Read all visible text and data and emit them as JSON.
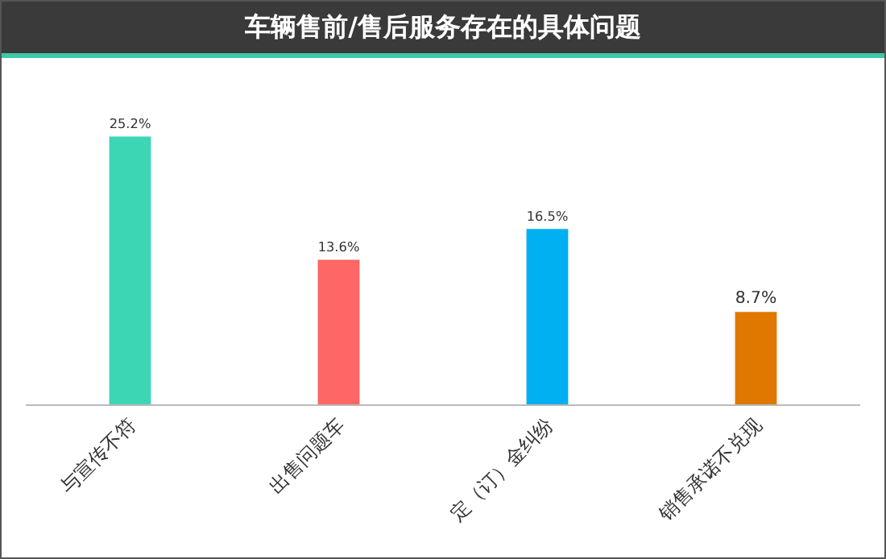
{
  "chart_data": {
    "type": "bar",
    "title": "车辆售前/售后服务存在的具体问题",
    "categories": [
      "与宣传不符",
      "出售问题车",
      "定（订）金纠纷",
      "销售承诺不兑现"
    ],
    "values": [
      25.2,
      13.6,
      16.5,
      8.7
    ],
    "value_labels": [
      "25.2%",
      "13.6%",
      "16.5%",
      "8.7%"
    ],
    "colors": [
      "#3dd6b5",
      "#ff6666",
      "#00b0f0",
      "#e07800"
    ],
    "grid": false,
    "legend": false
  }
}
